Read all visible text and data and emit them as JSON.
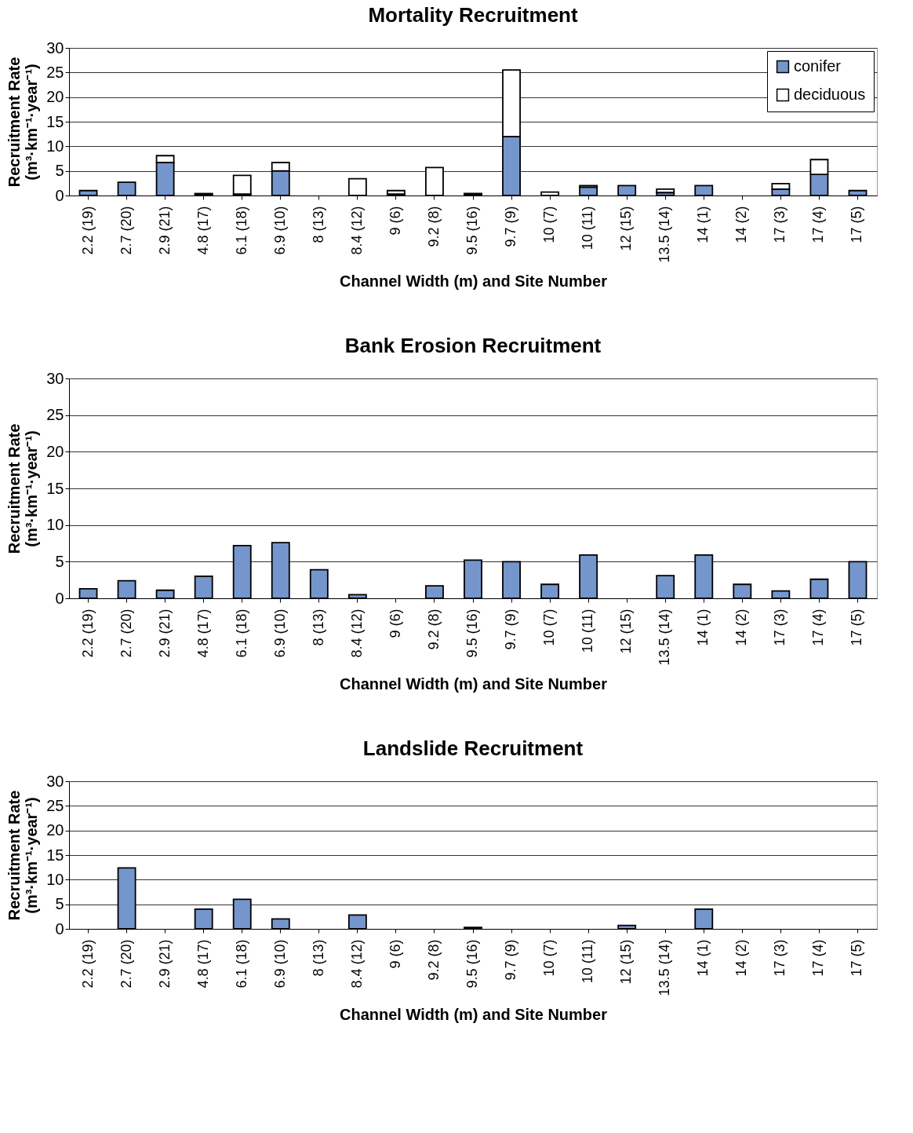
{
  "chart_data": [
    {
      "type": "bar",
      "title": "Mortality Recruitment",
      "xlabel": "Channel Width (m) and Site Number",
      "ylabel": "Recruitment Rate\n(m³·km⁻¹·year⁻¹)",
      "categories": [
        "2.2 (19)",
        "2.7 (20)",
        "2.9 (21)",
        "4.8 (17)",
        "6.1 (18)",
        "6.9 (10)",
        "8 (13)",
        "8.4 (12)",
        "9 (6)",
        "9.2 (8)",
        "9.5 (16)",
        "9.7 (9)",
        "10 (7)",
        "10 (11)",
        "12 (15)",
        "13.5 (14)",
        "14 (1)",
        "14 (2)",
        "17 (3)",
        "17 (4)",
        "17 (5)"
      ],
      "stacked": true,
      "series": [
        {
          "name": "conifer",
          "color": "#7596cc",
          "values": [
            1.0,
            2.7,
            6.7,
            0.3,
            0.3,
            5.0,
            0,
            0,
            0.3,
            0,
            0.3,
            12.0,
            0,
            1.7,
            2.0,
            0.6,
            2.0,
            0,
            1.3,
            4.3,
            1.0
          ]
        },
        {
          "name": "deciduous",
          "color": "#ffffff",
          "values": [
            0,
            0,
            1.4,
            0.1,
            3.8,
            1.7,
            0,
            3.4,
            0.7,
            5.7,
            0.1,
            13.5,
            0.7,
            0.3,
            0,
            0.7,
            0,
            0,
            1.1,
            3.0,
            0
          ]
        }
      ],
      "ylim": [
        0,
        30
      ],
      "yticks": [
        0,
        5,
        10,
        15,
        20,
        25,
        30
      ],
      "grid": "y",
      "legend": "top right"
    },
    {
      "type": "bar",
      "title": "Bank Erosion Recruitment",
      "xlabel": "Channel Width (m) and Site Number",
      "ylabel": "Recruitment Rate\n(m³·km⁻¹·year⁻¹)",
      "categories": [
        "2.2 (19)",
        "2.7 (20)",
        "2.9 (21)",
        "4.8 (17)",
        "6.1 (18)",
        "6.9 (10)",
        "8 (13)",
        "8.4 (12)",
        "9 (6)",
        "9.2 (8)",
        "9.5 (16)",
        "9.7 (9)",
        "10 (7)",
        "10 (11)",
        "12 (15)",
        "13.5 (14)",
        "14 (1)",
        "14 (2)",
        "17 (3)",
        "17 (4)",
        "17 (5)"
      ],
      "series": [
        {
          "color": "#7596cc",
          "values": [
            1.3,
            2.4,
            1.1,
            3.0,
            7.2,
            7.6,
            3.9,
            0.5,
            0,
            1.7,
            5.2,
            5.0,
            1.9,
            5.9,
            0,
            3.1,
            5.9,
            1.9,
            1.0,
            2.6,
            5.0
          ]
        }
      ],
      "ylim": [
        0,
        30
      ],
      "yticks": [
        0,
        5,
        10,
        15,
        20,
        25,
        30
      ],
      "grid": "y"
    },
    {
      "type": "bar",
      "title": "Landslide Recruitment",
      "xlabel": "Channel Width (m) and Site Number",
      "ylabel": "Recruitment Rate\n(m³·km⁻¹·year⁻¹)",
      "categories": [
        "2.2 (19)",
        "2.7 (20)",
        "2.9 (21)",
        "4.8 (17)",
        "6.1 (18)",
        "6.9 (10)",
        "8 (13)",
        "8.4 (12)",
        "9 (6)",
        "9.2 (8)",
        "9.5 (16)",
        "9.7 (9)",
        "10 (7)",
        "10 (11)",
        "12 (15)",
        "13.5 (14)",
        "14 (1)",
        "14 (2)",
        "17 (3)",
        "17 (4)",
        "17 (5)"
      ],
      "series": [
        {
          "color": "#7596cc",
          "values": [
            0,
            12.4,
            0,
            4.0,
            6.0,
            2.0,
            0,
            2.8,
            0,
            0,
            0.3,
            0,
            0,
            0,
            0.7,
            0,
            4.0,
            0,
            0,
            0,
            0
          ]
        }
      ],
      "ylim": [
        0,
        30
      ],
      "yticks": [
        0,
        5,
        10,
        15,
        20,
        25,
        30
      ],
      "grid": "y"
    }
  ]
}
